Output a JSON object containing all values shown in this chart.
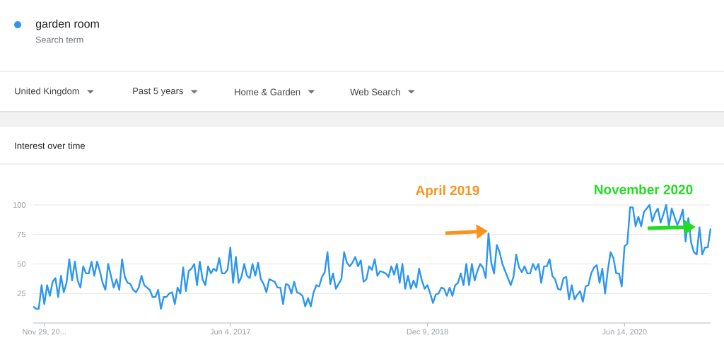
{
  "chart_data": {
    "type": "line",
    "title": "Interest over time",
    "legend_title": "Search term",
    "legend": "top left",
    "grid": "y",
    "annotations": [
      "United Kingdom",
      "Past 5 years",
      "Home & Garden",
      "Web Search",
      "April 2019",
      "November 2020"
    ],
    "categories": [
      null,
      null,
      null,
      null,
      "Nov 29, 20...",
      null,
      null,
      null,
      null,
      null,
      null,
      null,
      null,
      null,
      null,
      null,
      null,
      null,
      null,
      null,
      null,
      null,
      null,
      null,
      null,
      null,
      null,
      null,
      null,
      null,
      null,
      null,
      null,
      null,
      null,
      null,
      null,
      null,
      null,
      null,
      null,
      null,
      null,
      null,
      null,
      null,
      null,
      null,
      null,
      null,
      null,
      null,
      null,
      null,
      null,
      null,
      null,
      null,
      null,
      null,
      null,
      null,
      null,
      null,
      null,
      null,
      null,
      null,
      null,
      null,
      null,
      "Jun 4, 2017",
      null,
      null,
      null,
      null,
      null,
      null,
      null,
      null,
      null,
      null,
      null,
      null,
      null,
      null,
      null,
      null,
      null,
      null,
      null,
      null,
      null,
      null,
      null,
      null,
      null,
      null,
      null,
      null,
      null,
      null,
      null,
      null,
      null,
      null,
      null,
      null,
      null,
      null,
      null,
      null,
      null,
      null,
      null,
      null,
      null,
      null,
      null,
      null,
      null,
      null,
      null,
      null,
      null,
      null,
      null,
      null,
      null,
      null,
      null,
      null,
      null,
      null,
      null,
      null,
      null,
      null,
      null,
      null,
      null,
      null,
      "Dec 9, 2018",
      null,
      null,
      null,
      null,
      null,
      null,
      null,
      null,
      null,
      null,
      null,
      null,
      null,
      null,
      null,
      null,
      null,
      null,
      null,
      null,
      null,
      null,
      null,
      null,
      null,
      null,
      null,
      null,
      null,
      null,
      null,
      null,
      null,
      null,
      null,
      null,
      null,
      null,
      null,
      null,
      null,
      null,
      null,
      null,
      null,
      null,
      null,
      null,
      null,
      null,
      null,
      null,
      null,
      null,
      null,
      null,
      null,
      null,
      null,
      null,
      null,
      null,
      null,
      null,
      null,
      null,
      null,
      null,
      null,
      null,
      "Jun 14, 2020",
      null,
      null,
      null,
      null,
      null,
      null,
      null,
      null,
      null,
      null,
      null,
      null,
      null,
      null,
      null,
      null,
      null,
      null,
      null,
      null,
      null,
      null,
      null,
      null,
      null,
      null,
      null,
      null,
      null,
      null,
      null
    ],
    "ylim": [
      0,
      100
    ],
    "yticks": [
      25,
      50,
      75,
      100
    ],
    "series": [
      {
        "name": "garden room",
        "color": "#2d96ee",
        "values": [
          14,
          12,
          12,
          32,
          16,
          32,
          23,
          35,
          38,
          22,
          40,
          26,
          34,
          54,
          36,
          52,
          36,
          30,
          48,
          42,
          42,
          52,
          40,
          52,
          44,
          34,
          28,
          50,
          40,
          30,
          37,
          28,
          54,
          39,
          34,
          33,
          28,
          26,
          30,
          40,
          32,
          30,
          28,
          22,
          22,
          28,
          12,
          22,
          22,
          25,
          26,
          16,
          30,
          25,
          47,
          27,
          44,
          46,
          50,
          32,
          52,
          37,
          32,
          48,
          42,
          46,
          44,
          55,
          42,
          42,
          45,
          64,
          34,
          56,
          34,
          39,
          50,
          40,
          38,
          50,
          40,
          51,
          37,
          33,
          26,
          37,
          36,
          35,
          30,
          30,
          16,
          33,
          32,
          25,
          35,
          26,
          25,
          23,
          14,
          21,
          14,
          26,
          32,
          31,
          39,
          43,
          60,
          33,
          42,
          29,
          33,
          37,
          60,
          51,
          48,
          51,
          56,
          48,
          53,
          35,
          37,
          48,
          45,
          54,
          40,
          44,
          43,
          42,
          39,
          48,
          41,
          50,
          34,
          50,
          29,
          40,
          29,
          36,
          30,
          46,
          36,
          29,
          32,
          25,
          17,
          24,
          25,
          30,
          29,
          23,
          30,
          23,
          32,
          34,
          42,
          32,
          50,
          32,
          50,
          36,
          44,
          50,
          47,
          38,
          76,
          51,
          42,
          66,
          60,
          50,
          44,
          38,
          32,
          39,
          58,
          47,
          43,
          48,
          42,
          42,
          50,
          45,
          50,
          34,
          48,
          48,
          54,
          40,
          37,
          29,
          28,
          38,
          39,
          20,
          32,
          20,
          24,
          27,
          18,
          31,
          32,
          42,
          47,
          49,
          34,
          46,
          25,
          45,
          60,
          55,
          42,
          42,
          31,
          65,
          67,
          98,
          98,
          82,
          90,
          82,
          94,
          97,
          100,
          86,
          93,
          97,
          85,
          92,
          100,
          82,
          97,
          90,
          83,
          88,
          96,
          69,
          89,
          68,
          60,
          58,
          81,
          58,
          64,
          64,
          80
        ]
      }
    ]
  }
}
